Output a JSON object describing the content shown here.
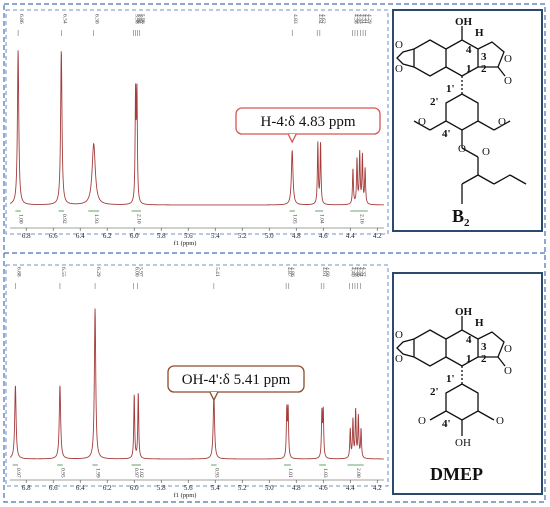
{
  "chart_data": [
    {
      "type": "line",
      "name": "spectrum-b2",
      "xlabel": "f1 (ppm)",
      "xlim": [
        6.92,
        4.15
      ],
      "x_ticks": [
        "6.8",
        "6.6",
        "6.4",
        "6.2",
        "6.0",
        "5.8",
        "5.6",
        "5.4",
        "5.2",
        "5.0",
        "4.8",
        "4.6",
        "4.4",
        "4.2"
      ],
      "peaks": [
        {
          "shift": 6.86,
          "height": 0.96,
          "width": 0.006
        },
        {
          "shift": 6.54,
          "height": 0.96,
          "width": 0.006
        },
        {
          "shift": 6.3,
          "height": 0.38,
          "width": 0.014
        },
        {
          "shift": 5.99,
          "height": 0.66,
          "width": 0.004
        },
        {
          "shift": 5.98,
          "height": 0.68,
          "width": 0.004
        },
        {
          "shift": 4.83,
          "height": 0.34,
          "width": 0.007
        },
        {
          "shift": 4.64,
          "height": 0.38,
          "width": 0.004
        },
        {
          "shift": 4.62,
          "height": 0.38,
          "width": 0.004
        },
        {
          "shift": 4.38,
          "height": 0.22,
          "width": 0.004
        },
        {
          "shift": 4.35,
          "height": 0.28,
          "width": 0.004
        },
        {
          "shift": 4.33,
          "height": 0.32,
          "width": 0.004
        },
        {
          "shift": 4.31,
          "height": 0.3,
          "width": 0.004
        },
        {
          "shift": 4.29,
          "height": 0.22,
          "width": 0.004
        }
      ],
      "peak_labels": [
        "6.86",
        "6.54",
        "6.30",
        "5.98",
        "5.98",
        "5.97",
        "5.96",
        "4.83",
        "4.64",
        "4.62",
        "4.38",
        "4.35",
        "4.33",
        "4.31",
        "4.31",
        "4.29"
      ],
      "peak_label_shifts": [
        6.86,
        6.54,
        6.3,
        6.005,
        5.99,
        5.975,
        5.96,
        4.83,
        4.645,
        4.625,
        4.385,
        4.365,
        4.345,
        4.325,
        4.305,
        4.285
      ],
      "integrals": [
        {
          "label": "1.00",
          "from": 6.88,
          "to": 6.84
        },
        {
          "label": "0.92",
          "from": 6.56,
          "to": 6.52
        },
        {
          "label": "1.93",
          "from": 6.34,
          "to": 6.26
        },
        {
          "label": "2.10",
          "from": 6.02,
          "to": 5.95
        },
        {
          "label": "1.05",
          "from": 4.85,
          "to": 4.81
        },
        {
          "label": "1.04",
          "from": 4.66,
          "to": 4.6
        },
        {
          "label": "2.16",
          "from": 4.4,
          "to": 4.27
        }
      ],
      "annotation": "H-4:δ 4.83 ppm",
      "annotation_shift": 4.83,
      "color": "#a43c3c"
    },
    {
      "type": "line",
      "name": "spectrum-dmep",
      "xlabel": "f1 (ppm)",
      "xlim": [
        6.92,
        4.15
      ],
      "x_ticks": [
        "6.8",
        "6.6",
        "6.4",
        "6.2",
        "6.0",
        "5.8",
        "5.6",
        "5.4",
        "5.2",
        "5.0",
        "4.8",
        "4.6",
        "4.4",
        "4.2"
      ],
      "peaks": [
        {
          "shift": 6.88,
          "height": 0.46,
          "width": 0.006
        },
        {
          "shift": 6.55,
          "height": 0.46,
          "width": 0.006
        },
        {
          "shift": 6.29,
          "height": 0.94,
          "width": 0.006
        },
        {
          "shift": 6.0,
          "height": 0.4,
          "width": 0.004
        },
        {
          "shift": 5.97,
          "height": 0.41,
          "width": 0.004
        },
        {
          "shift": 5.41,
          "height": 0.4,
          "width": 0.006
        },
        {
          "shift": 4.87,
          "height": 0.3,
          "width": 0.004
        },
        {
          "shift": 4.86,
          "height": 0.3,
          "width": 0.004
        },
        {
          "shift": 4.61,
          "height": 0.28,
          "width": 0.004
        },
        {
          "shift": 4.6,
          "height": 0.29,
          "width": 0.004
        },
        {
          "shift": 4.4,
          "height": 0.18,
          "width": 0.004
        },
        {
          "shift": 4.38,
          "height": 0.24,
          "width": 0.004
        },
        {
          "shift": 4.36,
          "height": 0.3,
          "width": 0.004
        },
        {
          "shift": 4.34,
          "height": 0.26,
          "width": 0.004
        },
        {
          "shift": 4.32,
          "height": 0.18,
          "width": 0.004
        }
      ],
      "peak_labels": [
        "6.88",
        "6.55",
        "6.29",
        "6.00",
        "5.97",
        "5.41",
        "4.87",
        "4.86",
        "4.61",
        "4.60",
        "4.40",
        "4.38",
        "4.36",
        "4.34",
        "4.32"
      ],
      "peak_label_shifts": [
        6.88,
        6.55,
        6.29,
        6.005,
        5.975,
        5.41,
        4.875,
        4.855,
        4.615,
        4.595,
        4.405,
        4.385,
        4.365,
        4.345,
        4.325
      ],
      "integrals": [
        {
          "label": "0.97",
          "from": 6.9,
          "to": 6.86
        },
        {
          "label": "0.95",
          "from": 6.57,
          "to": 6.53
        },
        {
          "label": "1.99",
          "from": 6.31,
          "to": 6.27
        },
        {
          "label": "0.97",
          "from": 6.02,
          "to": 5.99
        },
        {
          "label": "1.02",
          "from": 5.99,
          "to": 5.95
        },
        {
          "label": "0.93",
          "from": 5.43,
          "to": 5.39
        },
        {
          "label": "1.01",
          "from": 4.89,
          "to": 4.84
        },
        {
          "label": "1.03",
          "from": 4.63,
          "to": 4.58
        },
        {
          "label": "2.00",
          "from": 4.42,
          "to": 4.3
        }
      ],
      "annotation": "OH-4':δ 5.41 ppm",
      "annotation_shift": 5.41,
      "color": "#a43c3c"
    }
  ],
  "structures": [
    {
      "name": "B",
      "subscript": "2",
      "atom_labels": {
        "oh": "OH",
        "h": "H",
        "n4": "4",
        "n3": "3",
        "n1": "1",
        "n2": "2",
        "n1p": "1'",
        "n2p": "2'",
        "n4p": "4'",
        "o_ring1": "O",
        "o_ring2": "O",
        "o_lactone": "O",
        "o_carbonyl": "O",
        "o_meo1": "O",
        "o_meo2": "O",
        "o_ester": "O",
        "o_ester_co": "O"
      }
    },
    {
      "name": "DMEP",
      "atom_labels": {
        "oh": "OH",
        "h": "H",
        "n4": "4",
        "n3": "3",
        "n1": "1",
        "n2": "2",
        "n1p": "1'",
        "n2p": "2'",
        "n4p": "4'",
        "o_ring1": "O",
        "o_ring2": "O",
        "o_lactone": "O",
        "o_carbonyl": "O",
        "o_meo1": "O",
        "o_meo2": "O",
        "oh4p": "OH"
      }
    }
  ],
  "colors": {
    "spectrum": "#a43c3c",
    "frame": "#4a6fb5",
    "box": "#2c4a6e",
    "callout1": "#d9534f",
    "callout2": "#8b4a2b",
    "integral": "#3a8a3a"
  }
}
